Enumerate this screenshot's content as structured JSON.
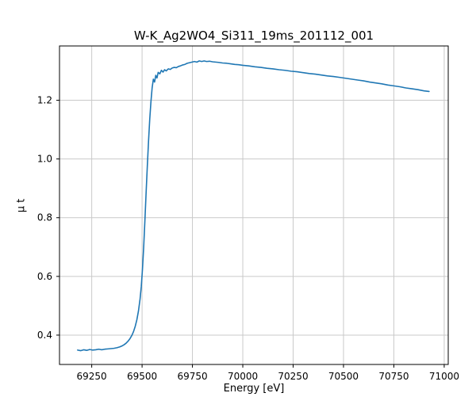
{
  "chart_data": {
    "type": "line",
    "title": "W-K_Ag2WO4_Si311_19ms_201112_001",
    "xlabel": "Energy [eV]",
    "ylabel": "μ t",
    "xlim": [
      69090,
      71020
    ],
    "ylim": [
      0.3,
      1.385
    ],
    "xticks": [
      69250,
      69500,
      69750,
      70000,
      70250,
      70500,
      70750,
      71000
    ],
    "xtick_labels": [
      "69250",
      "69500",
      "69750",
      "70000",
      "70250",
      "70500",
      "70750",
      "71000"
    ],
    "yticks": [
      0.4,
      0.6,
      0.8,
      1.0,
      1.2
    ],
    "ytick_labels": [
      "0.4",
      "0.6",
      "0.8",
      "1.0",
      "1.2"
    ],
    "grid": true,
    "line_color": "#1f77b4",
    "grid_color": "#c9c9c9",
    "frame_color": "#000000",
    "series": [
      {
        "name": "mu_t",
        "x": [
          69180,
          69195,
          69210,
          69225,
          69240,
          69255,
          69270,
          69285,
          69300,
          69315,
          69330,
          69345,
          69360,
          69375,
          69390,
          69400,
          69410,
          69420,
          69430,
          69440,
          69450,
          69458,
          69466,
          69474,
          69482,
          69490,
          69496,
          69502,
          69508,
          69514,
          69520,
          69526,
          69532,
          69538,
          69544,
          69550,
          69556,
          69562,
          69568,
          69574,
          69580,
          69588,
          69596,
          69604,
          69612,
          69620,
          69630,
          69640,
          69650,
          69660,
          69670,
          69680,
          69690,
          69700,
          69712,
          69724,
          69736,
          69748,
          69760,
          69772,
          69784,
          69796,
          69808,
          69820,
          69835,
          69850,
          69865,
          69880,
          69900,
          69920,
          69940,
          69960,
          69980,
          70000,
          70030,
          70060,
          70090,
          70120,
          70150,
          70180,
          70210,
          70240,
          70270,
          70300,
          70330,
          70360,
          70390,
          70420,
          70450,
          70480,
          70510,
          70540,
          70570,
          70600,
          70630,
          70660,
          70690,
          70720,
          70750,
          70780,
          70810,
          70840,
          70870,
          70900,
          70925
        ],
        "y": [
          0.349,
          0.347,
          0.35,
          0.348,
          0.351,
          0.349,
          0.35,
          0.352,
          0.35,
          0.352,
          0.353,
          0.354,
          0.355,
          0.357,
          0.36,
          0.363,
          0.367,
          0.372,
          0.379,
          0.388,
          0.4,
          0.413,
          0.43,
          0.452,
          0.482,
          0.523,
          0.565,
          0.625,
          0.7,
          0.79,
          0.885,
          0.975,
          1.06,
          1.135,
          1.195,
          1.243,
          1.272,
          1.262,
          1.285,
          1.276,
          1.295,
          1.29,
          1.302,
          1.296,
          1.304,
          1.3,
          1.307,
          1.305,
          1.31,
          1.312,
          1.311,
          1.315,
          1.317,
          1.32,
          1.322,
          1.326,
          1.328,
          1.33,
          1.332,
          1.33,
          1.334,
          1.332,
          1.334,
          1.332,
          1.333,
          1.331,
          1.33,
          1.329,
          1.327,
          1.326,
          1.324,
          1.322,
          1.321,
          1.319,
          1.317,
          1.314,
          1.312,
          1.309,
          1.307,
          1.304,
          1.302,
          1.299,
          1.297,
          1.294,
          1.291,
          1.289,
          1.286,
          1.283,
          1.281,
          1.278,
          1.275,
          1.272,
          1.269,
          1.266,
          1.262,
          1.259,
          1.256,
          1.252,
          1.249,
          1.246,
          1.242,
          1.239,
          1.236,
          1.232,
          1.23
        ]
      }
    ]
  }
}
